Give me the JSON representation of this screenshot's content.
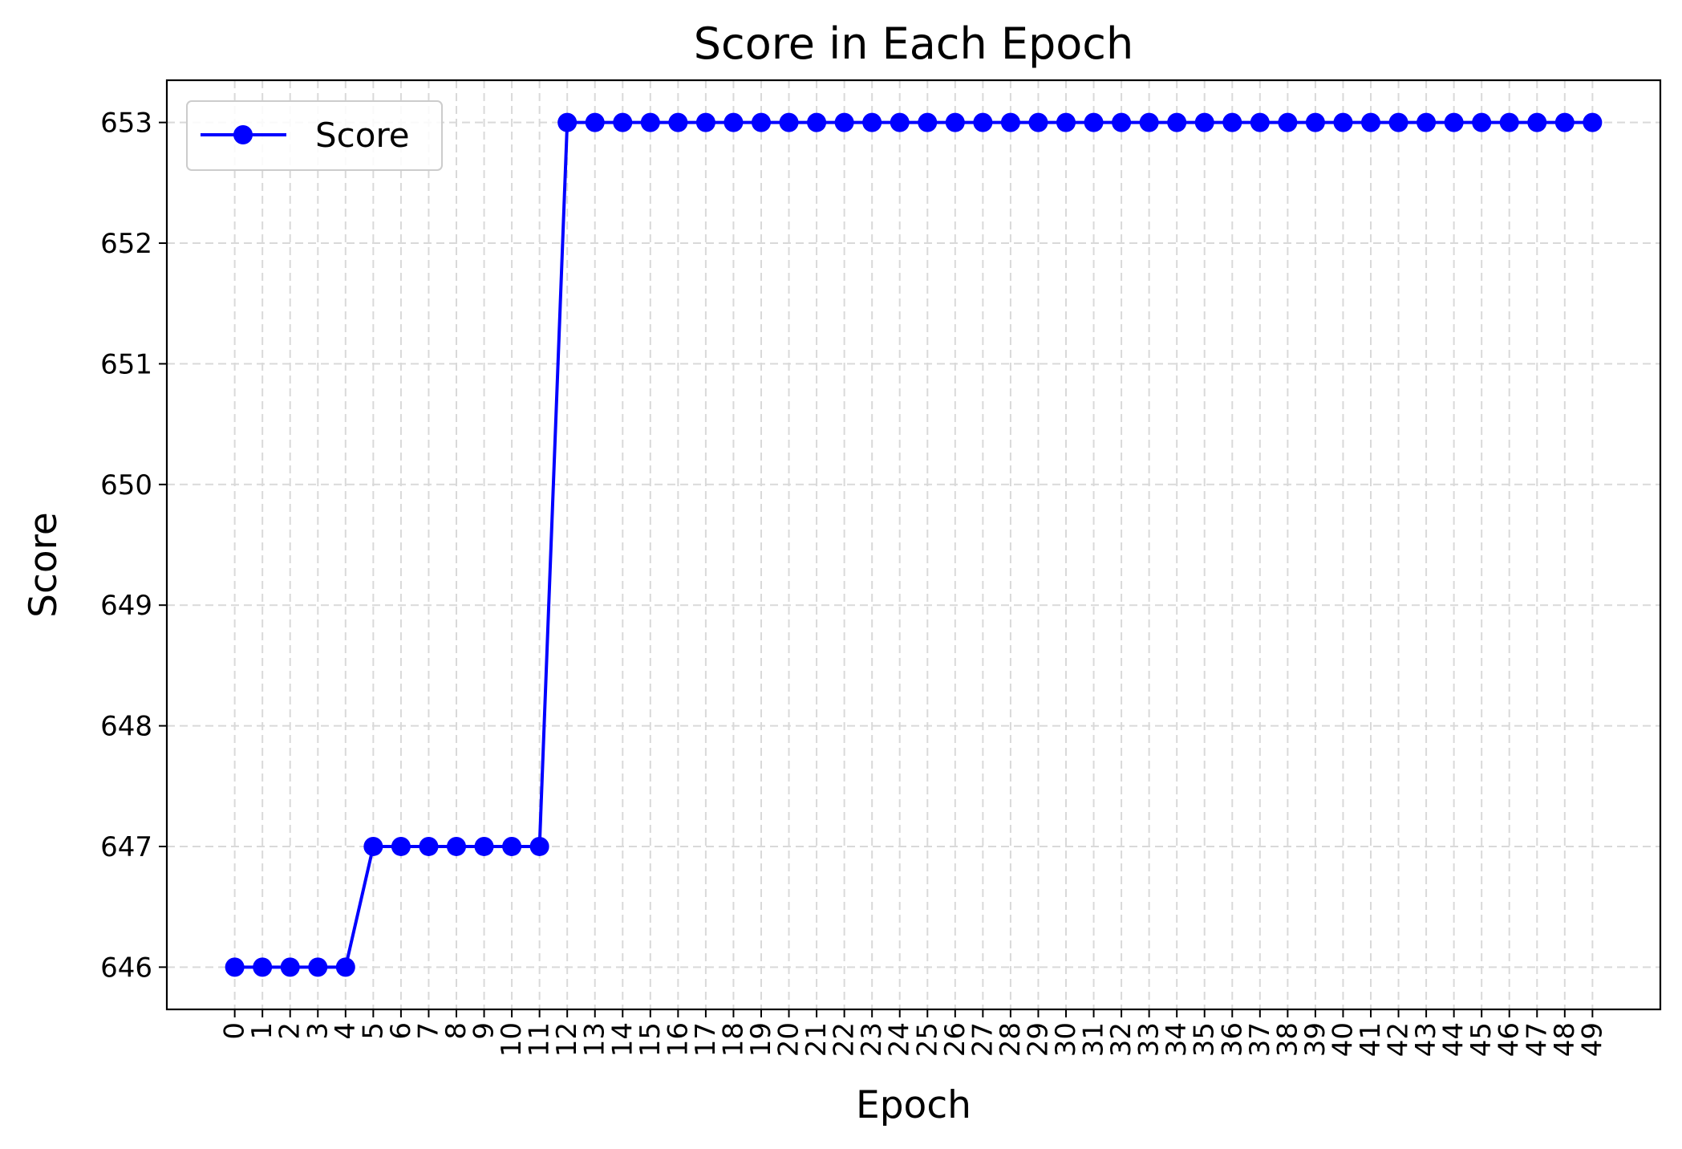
{
  "chart_data": {
    "type": "line",
    "title": "Score in Each Epoch",
    "xlabel": "Epoch",
    "ylabel": "Score",
    "x": [
      0,
      1,
      2,
      3,
      4,
      5,
      6,
      7,
      8,
      9,
      10,
      11,
      12,
      13,
      14,
      15,
      16,
      17,
      18,
      19,
      20,
      21,
      22,
      23,
      24,
      25,
      26,
      27,
      28,
      29,
      30,
      31,
      32,
      33,
      34,
      35,
      36,
      37,
      38,
      39,
      40,
      41,
      42,
      43,
      44,
      45,
      46,
      47,
      48,
      49
    ],
    "x_tick_labels": [
      "0",
      "1",
      "2",
      "3",
      "4",
      "5",
      "6",
      "7",
      "8",
      "9",
      "10",
      "11",
      "12",
      "13",
      "14",
      "15",
      "16",
      "17",
      "18",
      "19",
      "20",
      "21",
      "22",
      "23",
      "24",
      "25",
      "26",
      "27",
      "28",
      "29",
      "30",
      "31",
      "32",
      "33",
      "34",
      "35",
      "36",
      "37",
      "38",
      "39",
      "40",
      "41",
      "42",
      "43",
      "44",
      "45",
      "46",
      "47",
      "48",
      "49"
    ],
    "y_ticks": [
      646,
      647,
      648,
      649,
      650,
      651,
      652,
      653
    ],
    "y_tick_labels": [
      "646",
      "647",
      "648",
      "649",
      "650",
      "651",
      "652",
      "653"
    ],
    "xlim": [
      -2.45,
      51.45
    ],
    "ylim": [
      645.65,
      653.35
    ],
    "grid": true,
    "legend_position": "upper left",
    "series": [
      {
        "name": "Score",
        "color": "#0000ff",
        "marker": "circle",
        "values": [
          646,
          646,
          646,
          646,
          646,
          647,
          647,
          647,
          647,
          647,
          647,
          647,
          653,
          653,
          653,
          653,
          653,
          653,
          653,
          653,
          653,
          653,
          653,
          653,
          653,
          653,
          653,
          653,
          653,
          653,
          653,
          653,
          653,
          653,
          653,
          653,
          653,
          653,
          653,
          653,
          653,
          653,
          653,
          653,
          653,
          653,
          653,
          653,
          653,
          653
        ]
      }
    ]
  }
}
